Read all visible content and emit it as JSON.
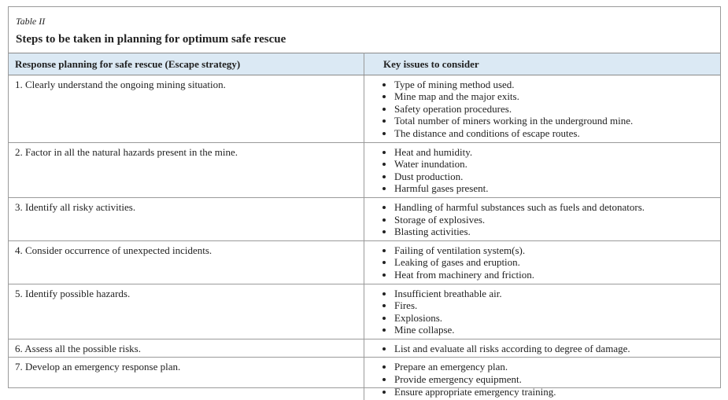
{
  "table_label": "Table II",
  "title": "Steps to be taken in planning for optimum safe rescue",
  "table": {
    "header": [
      "Response planning for safe rescue (Escape strategy)",
      "Key issues to consider"
    ],
    "rows": [
      {
        "step": "1. Clearly understand the ongoing mining situation.",
        "issues": [
          "Type of mining method used.",
          "Mine map and the major exits.",
          "Safety operation procedures.",
          "Total number of miners working in the underground mine.",
          "The distance and conditions of escape routes."
        ]
      },
      {
        "step": "2. Factor in all the natural hazards present in the mine.",
        "issues": [
          "Heat and humidity.",
          "Water inundation.",
          "Dust production.",
          "Harmful gases present."
        ]
      },
      {
        "step": "3. Identify all risky activities.",
        "issues": [
          "Handling of harmful substances such as fuels and detonators.",
          "Storage of explosives.",
          "Blasting activities."
        ]
      },
      {
        "step": "4. Consider occurrence of unexpected incidents.",
        "issues": [
          "Failing of ventilation system(s).",
          "Leaking of gases and eruption.",
          "Heat from machinery and friction."
        ]
      },
      {
        "step": "5. Identify possible hazards.",
        "issues": [
          "Insufficient breathable air.",
          "Fires.",
          "Explosions.",
          "Mine collapse."
        ]
      },
      {
        "step": "6. Assess all the possible risks.",
        "issues": [
          "List and evaluate all risks according to degree of damage."
        ]
      },
      {
        "step": "7. Develop an emergency response plan.",
        "issues": [
          "Prepare an emergency plan.",
          "Provide emergency equipment.",
          "Ensure appropriate emergency training."
        ]
      }
    ]
  }
}
